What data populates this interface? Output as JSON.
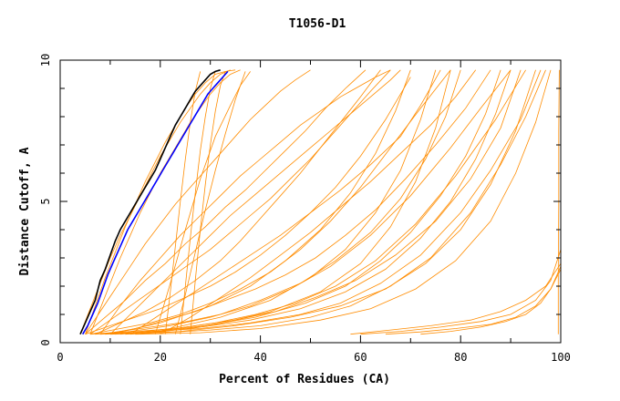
{
  "chart_data": {
    "type": "line",
    "title": "T1056-D1",
    "xlabel": "Percent of Residues (CA)",
    "ylabel": "Distance Cutoff, A",
    "xlim": [
      0,
      100
    ],
    "ylim": [
      0,
      10
    ],
    "xticks": [
      "0",
      "20",
      "40",
      "60",
      "80",
      "100"
    ],
    "yticks": [
      "0",
      "5",
      "10"
    ],
    "grid": false,
    "colors": {
      "bundle": "#ff8c00",
      "highlight_1": "#000000",
      "highlight_2": "#0000ff"
    },
    "series": [
      {
        "color": "#000000",
        "x": [
          4,
          5,
          6,
          7,
          8,
          9,
          10,
          11,
          12,
          13,
          14,
          15,
          16,
          17,
          18,
          19,
          20,
          21,
          22,
          23,
          24,
          25,
          26,
          27,
          28,
          29,
          30,
          31,
          32
        ],
        "y": [
          0.3,
          0.7,
          1.1,
          1.5,
          2.2,
          2.6,
          3.1,
          3.6,
          4.0,
          4.3,
          4.6,
          4.9,
          5.2,
          5.5,
          5.8,
          6.1,
          6.5,
          6.9,
          7.3,
          7.7,
          8.0,
          8.3,
          8.6,
          8.9,
          9.1,
          9.3,
          9.5,
          9.6,
          9.65
        ]
      },
      {
        "color": "#0000ff",
        "x": [
          4.5,
          5.5,
          6.5,
          7.5,
          8.5,
          9.5,
          10.5,
          11.5,
          12.5,
          13.5,
          14.5,
          15.5,
          16.5,
          17.5,
          18.5,
          19.5,
          20.5,
          21.5,
          22.5,
          23.5,
          24.5,
          25.5,
          26.5,
          27.5,
          28.5,
          29.5,
          30.5,
          31.5,
          32.5,
          33.5
        ],
        "y": [
          0.3,
          0.6,
          1.0,
          1.4,
          1.9,
          2.4,
          2.8,
          3.2,
          3.6,
          4.0,
          4.3,
          4.6,
          4.9,
          5.2,
          5.5,
          5.8,
          6.1,
          6.4,
          6.7,
          7.0,
          7.3,
          7.6,
          7.9,
          8.2,
          8.5,
          8.8,
          9.0,
          9.2,
          9.4,
          9.6
        ]
      },
      {
        "color": "#ff8c00",
        "x": [
          4,
          6,
          8,
          10,
          12,
          14,
          16,
          18,
          20,
          22,
          24,
          26,
          28,
          30,
          32,
          34
        ],
        "y": [
          0.3,
          1.2,
          2.1,
          3.0,
          3.8,
          4.5,
          5.2,
          5.9,
          6.6,
          7.2,
          7.8,
          8.3,
          8.8,
          9.2,
          9.5,
          9.65
        ]
      },
      {
        "color": "#ff8c00",
        "x": [
          5,
          7,
          9,
          11,
          13,
          15,
          17,
          19,
          21,
          23,
          25,
          27,
          29,
          31,
          33,
          35
        ],
        "y": [
          0.3,
          1.3,
          2.3,
          3.2,
          4.1,
          4.9,
          5.7,
          6.4,
          7.1,
          7.7,
          8.3,
          8.8,
          9.2,
          9.5,
          9.6,
          9.65
        ]
      },
      {
        "color": "#ff8c00",
        "x": [
          6,
          8,
          10,
          12,
          14,
          16,
          18,
          20,
          22,
          24,
          26,
          28,
          30,
          32,
          34,
          36
        ],
        "y": [
          0.3,
          1.2,
          2.1,
          3.0,
          3.8,
          4.6,
          5.3,
          6.0,
          6.6,
          7.2,
          7.8,
          8.3,
          8.8,
          9.2,
          9.5,
          9.65
        ]
      },
      {
        "color": "#ff8c00",
        "x": [
          5,
          8,
          11,
          14,
          17,
          20,
          23,
          26,
          29,
          32,
          35,
          38,
          41,
          44,
          47,
          50
        ],
        "y": [
          0.3,
          1.1,
          1.9,
          2.7,
          3.5,
          4.2,
          4.9,
          5.5,
          6.1,
          6.7,
          7.3,
          7.9,
          8.4,
          8.9,
          9.3,
          9.65
        ]
      },
      {
        "color": "#ff8c00",
        "x": [
          5,
          9,
          13,
          17,
          21,
          25,
          29,
          33,
          37,
          41,
          45,
          49,
          53,
          57,
          61
        ],
        "y": [
          0.3,
          0.9,
          1.5,
          2.2,
          2.8,
          3.5,
          4.1,
          4.8,
          5.4,
          6.1,
          6.8,
          7.5,
          8.3,
          9.0,
          9.65
        ]
      },
      {
        "color": "#ff8c00",
        "x": [
          6,
          10,
          14,
          18,
          22,
          26,
          30,
          34,
          38,
          42,
          46,
          50,
          54,
          58,
          62,
          66
        ],
        "y": [
          0.3,
          0.8,
          1.3,
          1.8,
          2.3,
          2.8,
          3.3,
          3.9,
          4.5,
          5.1,
          5.8,
          6.5,
          7.3,
          8.1,
          8.9,
          9.65
        ]
      },
      {
        "color": "#ff8c00",
        "x": [
          5,
          10,
          15,
          20,
          25,
          30,
          35,
          40,
          45,
          50,
          55,
          60,
          65,
          70
        ],
        "y": [
          0.3,
          0.6,
          0.9,
          1.2,
          1.6,
          2.0,
          2.5,
          3.1,
          3.8,
          4.6,
          5.5,
          6.6,
          7.9,
          9.4
        ]
      },
      {
        "color": "#ff8c00",
        "x": [
          6,
          12,
          18,
          24,
          30,
          36,
          42,
          48,
          54,
          60,
          66,
          72,
          78
        ],
        "y": [
          0.3,
          0.5,
          0.7,
          1.0,
          1.4,
          1.9,
          2.5,
          3.3,
          4.3,
          5.5,
          6.9,
          8.3,
          9.65
        ]
      },
      {
        "color": "#ff8c00",
        "x": [
          6,
          14,
          22,
          30,
          38,
          46,
          54,
          62,
          70,
          78,
          84,
          90
        ],
        "y": [
          0.3,
          0.4,
          0.6,
          0.9,
          1.3,
          1.9,
          2.7,
          3.8,
          5.2,
          6.9,
          8.3,
          9.65
        ]
      },
      {
        "color": "#ff8c00",
        "x": [
          7,
          15,
          23,
          31,
          39,
          47,
          55,
          63,
          71,
          79,
          87,
          93
        ],
        "y": [
          0.3,
          0.4,
          0.5,
          0.7,
          1.0,
          1.4,
          2.0,
          2.9,
          4.2,
          5.9,
          7.9,
          9.65
        ]
      },
      {
        "color": "#ff8c00",
        "x": [
          8,
          18,
          28,
          38,
          48,
          56,
          64,
          72,
          80,
          86,
          92,
          96
        ],
        "y": [
          0.3,
          0.4,
          0.5,
          0.7,
          1.0,
          1.4,
          2.1,
          3.1,
          4.6,
          6.1,
          7.9,
          9.65
        ]
      },
      {
        "color": "#ff8c00",
        "x": [
          10,
          20,
          30,
          40,
          50,
          58,
          66,
          74,
          82,
          88,
          93,
          97
        ],
        "y": [
          0.3,
          0.35,
          0.45,
          0.6,
          0.9,
          1.3,
          2.0,
          3.0,
          4.6,
          6.3,
          8.0,
          9.65
        ]
      },
      {
        "color": "#ff8c00",
        "x": [
          9,
          19,
          29,
          39,
          49,
          57,
          64,
          70,
          76,
          81,
          85,
          88
        ],
        "y": [
          0.3,
          0.4,
          0.6,
          0.9,
          1.4,
          2.0,
          2.9,
          3.9,
          5.2,
          6.6,
          8.1,
          9.65
        ]
      },
      {
        "color": "#ff8c00",
        "x": [
          8,
          16,
          24,
          32,
          40,
          48,
          55,
          62,
          68,
          73,
          77,
          80
        ],
        "y": [
          0.3,
          0.5,
          0.7,
          1.0,
          1.5,
          2.1,
          2.9,
          3.9,
          5.1,
          6.5,
          8.0,
          9.65
        ]
      },
      {
        "color": "#ff8c00",
        "x": [
          12,
          22,
          32,
          42,
          50,
          57,
          63,
          68,
          72,
          75
        ],
        "y": [
          0.3,
          0.5,
          0.9,
          1.5,
          2.3,
          3.3,
          4.6,
          6.1,
          7.9,
          9.65
        ]
      },
      {
        "color": "#ff8c00",
        "x": [
          10,
          20,
          30,
          38,
          45,
          52,
          58,
          63,
          67,
          70
        ],
        "y": [
          0.3,
          0.7,
          1.3,
          2.0,
          2.9,
          4.0,
          5.3,
          6.7,
          8.2,
          9.65
        ]
      },
      {
        "color": "#ff8c00",
        "x": [
          14,
          20,
          26,
          32,
          38,
          44,
          50,
          56,
          62,
          68,
          72,
          76
        ],
        "y": [
          0.3,
          1.0,
          1.7,
          2.4,
          3.1,
          3.8,
          4.6,
          5.4,
          6.3,
          7.3,
          8.4,
          9.65
        ]
      },
      {
        "color": "#ff8c00",
        "x": [
          8,
          12,
          16,
          20,
          24,
          28,
          32,
          36,
          40,
          44,
          48,
          52,
          56,
          60,
          63,
          66
        ],
        "y": [
          0.3,
          1.3,
          2.2,
          3.0,
          3.8,
          4.5,
          5.2,
          5.9,
          6.5,
          7.1,
          7.7,
          8.2,
          8.7,
          9.1,
          9.4,
          9.65
        ]
      },
      {
        "color": "#ff8c00",
        "x": [
          10,
          14,
          18,
          22,
          26,
          30,
          34,
          38,
          42,
          46,
          50,
          54,
          58,
          62,
          66,
          68
        ],
        "y": [
          0.3,
          1.0,
          1.7,
          2.4,
          3.1,
          3.8,
          4.5,
          5.1,
          5.7,
          6.3,
          6.9,
          7.5,
          8.1,
          8.7,
          9.3,
          9.65
        ]
      },
      {
        "color": "#ff8c00",
        "x": [
          7,
          12,
          17,
          22,
          27,
          32,
          36,
          40,
          44,
          48,
          52,
          56,
          60,
          64
        ],
        "y": [
          0.3,
          0.7,
          1.1,
          1.6,
          2.2,
          2.9,
          3.6,
          4.4,
          5.2,
          6.0,
          6.9,
          7.8,
          8.7,
          9.65
        ]
      },
      {
        "color": "#ff8c00",
        "x": [
          20,
          26,
          32,
          38,
          44,
          50,
          56,
          62,
          68,
          74,
          79,
          83
        ],
        "y": [
          0.3,
          0.9,
          1.6,
          2.3,
          3.1,
          3.9,
          4.8,
          5.7,
          6.7,
          7.7,
          8.7,
          9.65
        ]
      },
      {
        "color": "#ff8c00",
        "x": [
          9,
          15,
          21,
          27,
          33,
          39,
          45,
          51,
          57,
          63,
          69,
          75,
          81,
          86
        ],
        "y": [
          0.3,
          0.5,
          0.8,
          1.1,
          1.5,
          1.9,
          2.4,
          3.0,
          3.8,
          4.7,
          5.8,
          7.0,
          8.3,
          9.65
        ]
      },
      {
        "color": "#ff8c00",
        "x": [
          11,
          19,
          27,
          35,
          43,
          51,
          59,
          67,
          75,
          82,
          88,
          92
        ],
        "y": [
          0.3,
          0.4,
          0.6,
          0.8,
          1.1,
          1.6,
          2.2,
          3.1,
          4.3,
          5.8,
          7.6,
          9.65
        ]
      },
      {
        "color": "#ff8c00",
        "x": [
          13,
          24,
          35,
          46,
          56,
          65,
          73,
          80,
          86,
          91,
          95
        ],
        "y": [
          0.3,
          0.4,
          0.6,
          0.9,
          1.3,
          1.9,
          2.8,
          4.0,
          5.6,
          7.5,
          9.65
        ]
      },
      {
        "color": "#ff8c00",
        "x": [
          15,
          28,
          40,
          52,
          62,
          71,
          79,
          86,
          91,
          95,
          98
        ],
        "y": [
          0.3,
          0.35,
          0.5,
          0.8,
          1.2,
          1.9,
          2.9,
          4.3,
          6.0,
          7.8,
          9.65
        ]
      },
      {
        "color": "#ff8c00",
        "x": [
          14,
          26,
          38,
          48,
          57,
          65,
          72,
          78,
          83,
          87,
          90
        ],
        "y": [
          0.3,
          0.5,
          0.8,
          1.2,
          1.8,
          2.6,
          3.7,
          5.0,
          6.5,
          8.1,
          9.65
        ]
      },
      {
        "color": "#ff8c00",
        "x": [
          16,
          30,
          42,
          52,
          60,
          66,
          71,
          75,
          78
        ],
        "y": [
          0.3,
          0.6,
          1.1,
          1.8,
          2.8,
          4.1,
          5.7,
          7.6,
          9.65
        ]
      },
      {
        "color": "#ff8c00",
        "x": [
          19,
          22,
          25,
          28,
          31,
          34,
          36,
          38
        ],
        "y": [
          0.3,
          2.1,
          4.0,
          5.8,
          7.3,
          8.4,
          9.1,
          9.6
        ]
      },
      {
        "color": "#ff8c00",
        "x": [
          21,
          22,
          23,
          24,
          25,
          26,
          27,
          28
        ],
        "y": [
          0.3,
          1.8,
          3.4,
          5.0,
          6.5,
          7.8,
          8.9,
          9.6
        ]
      },
      {
        "color": "#ff8c00",
        "x": [
          24,
          25,
          26,
          27,
          28,
          29,
          30,
          31
        ],
        "y": [
          0.3,
          2.0,
          3.7,
          5.3,
          6.8,
          8.0,
          9.0,
          9.6
        ]
      },
      {
        "color": "#ff8c00",
        "x": [
          26,
          27,
          28,
          29,
          30,
          31,
          32,
          33
        ],
        "y": [
          0.3,
          2.2,
          4.0,
          5.6,
          7.0,
          8.2,
          9.1,
          9.6
        ]
      },
      {
        "color": "#ff8c00",
        "x": [
          23,
          25,
          27,
          29,
          31,
          33,
          35,
          37
        ],
        "y": [
          0.3,
          1.7,
          3.2,
          4.7,
          6.1,
          7.4,
          8.6,
          9.6
        ]
      },
      {
        "color": "#ff8c00",
        "x": [
          58,
          66,
          74,
          82,
          88,
          93,
          97,
          100
        ],
        "y": [
          0.3,
          0.45,
          0.6,
          0.8,
          1.1,
          1.5,
          2.0,
          2.8
        ]
      },
      {
        "color": "#ff8c00",
        "x": [
          60,
          68,
          76,
          84,
          90,
          95,
          98,
          100
        ],
        "y": [
          0.3,
          0.4,
          0.55,
          0.75,
          1.0,
          1.5,
          2.2,
          3.3
        ]
      },
      {
        "color": "#ff8c00",
        "x": [
          65,
          72,
          79,
          86,
          91,
          95,
          98,
          100
        ],
        "y": [
          0.3,
          0.38,
          0.5,
          0.65,
          0.9,
          1.3,
          1.9,
          2.6
        ]
      },
      {
        "color": "#ff8c00",
        "x": [
          72,
          78,
          84,
          89,
          93,
          96,
          98,
          100
        ],
        "y": [
          0.3,
          0.4,
          0.55,
          0.75,
          1.0,
          1.4,
          1.9,
          2.7
        ]
      },
      {
        "color": "#ff8c00",
        "x": [
          99.5,
          99.5,
          99.6,
          99.6,
          99.7
        ],
        "y": [
          0.3,
          2.5,
          5.0,
          7.5,
          9.65
        ]
      }
    ]
  }
}
